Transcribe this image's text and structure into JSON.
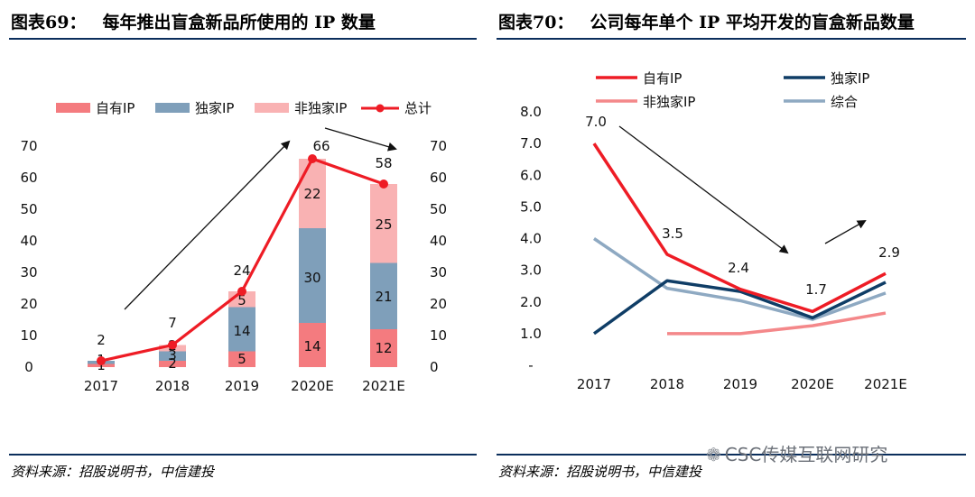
{
  "left": {
    "title_num": "图表69：",
    "title_text": "每年推出盲盒新品所使用的 IP 数量",
    "source": "资料来源：招股说明书，中信建投"
  },
  "right": {
    "title_num": "图表70：",
    "title_text": "公司每年单个 IP 平均开发的盲盒新品数量",
    "source": "资料来源：招股说明书，中信建投"
  },
  "watermark": "CSC传媒互联网研究",
  "colors": {
    "own": "#f47b7f",
    "exclusive": "#7f9fba",
    "nonexclusive": "#f9b2b3",
    "total": "#ee1c25",
    "line_own": "#ee1c25",
    "line_exclusive": "#0f3d66",
    "line_nonexclusive": "#f4888a",
    "line_combined": "#8ea9c2"
  },
  "chart_data": [
    {
      "type": "bar",
      "stacked": true,
      "categories": [
        "2017",
        "2018",
        "2019",
        "2020E",
        "2021E"
      ],
      "series": [
        {
          "name": "自有IP",
          "values": [
            1,
            2,
            5,
            14,
            12
          ],
          "labels": [
            "1",
            "2",
            "5",
            "14",
            "12"
          ]
        },
        {
          "name": "独家IP",
          "values": [
            1,
            3,
            14,
            30,
            21
          ],
          "labels": [
            "1",
            "3",
            "14",
            "30",
            "21"
          ]
        },
        {
          "name": "非独家IP",
          "values": [
            0,
            2,
            5,
            22,
            25
          ],
          "labels": [
            "",
            "2",
            "5",
            "22",
            "25"
          ]
        }
      ],
      "line": {
        "name": "总计",
        "values": [
          2,
          7,
          24,
          66,
          58
        ],
        "labels": [
          "2",
          "7",
          "24",
          "66",
          "58"
        ]
      },
      "y_ticks": [
        "0",
        "10",
        "20",
        "30",
        "40",
        "50",
        "60",
        "70"
      ],
      "ylim": [
        0,
        70
      ],
      "legend": "top"
    },
    {
      "type": "line",
      "categories": [
        "2017",
        "2018",
        "2019",
        "2020E",
        "2021E"
      ],
      "series": [
        {
          "name": "自有IP",
          "values": [
            7.0,
            3.5,
            2.4,
            1.7,
            2.9
          ]
        },
        {
          "name": "独家IP",
          "values": [
            1.0,
            2.67,
            2.33,
            1.5,
            2.62
          ]
        },
        {
          "name": "非独家IP",
          "values": [
            null,
            1.0,
            1.0,
            1.25,
            1.65
          ]
        },
        {
          "name": "综合",
          "values": [
            4.0,
            2.43,
            2.04,
            1.45,
            2.28
          ]
        }
      ],
      "data_labels": [
        "7.0",
        "3.5",
        "2.4",
        "1.7",
        "2.9"
      ],
      "y_ticks": [
        "8.0",
        "7.0",
        "6.0",
        "5.0",
        "4.0",
        "3.0",
        "2.0",
        "1.0",
        "-"
      ],
      "ylim": [
        0,
        8
      ],
      "legend": "top"
    }
  ]
}
